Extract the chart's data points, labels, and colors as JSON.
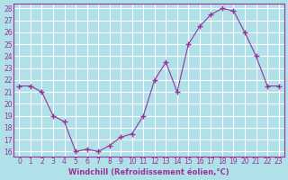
{
  "x": [
    0,
    1,
    2,
    3,
    4,
    5,
    6,
    7,
    8,
    9,
    10,
    11,
    12,
    13,
    14,
    15,
    16,
    17,
    18,
    19,
    20,
    21,
    22,
    23
  ],
  "y": [
    21.5,
    21.5,
    21.0,
    19.0,
    18.5,
    16.0,
    16.2,
    16.0,
    16.5,
    17.2,
    17.5,
    19.0,
    22.0,
    23.5,
    21.0,
    25.0,
    26.5,
    27.5,
    28.0,
    27.8,
    26.0,
    24.0,
    21.5,
    21.5
  ],
  "line_color": "#993399",
  "marker": "+",
  "background_color": "#b0e0e8",
  "grid_color": "#ffffff",
  "xlabel": "Windchill (Refroidissement éolien,°C)",
  "ylim": [
    16,
    28
  ],
  "yticks": [
    16,
    17,
    18,
    19,
    20,
    21,
    22,
    23,
    24,
    25,
    26,
    27,
    28
  ],
  "xticks": [
    0,
    1,
    2,
    3,
    4,
    5,
    6,
    7,
    8,
    9,
    10,
    11,
    12,
    13,
    14,
    15,
    16,
    17,
    18,
    19,
    20,
    21,
    22,
    23
  ],
  "xlim": [
    -0.5,
    23.5
  ]
}
